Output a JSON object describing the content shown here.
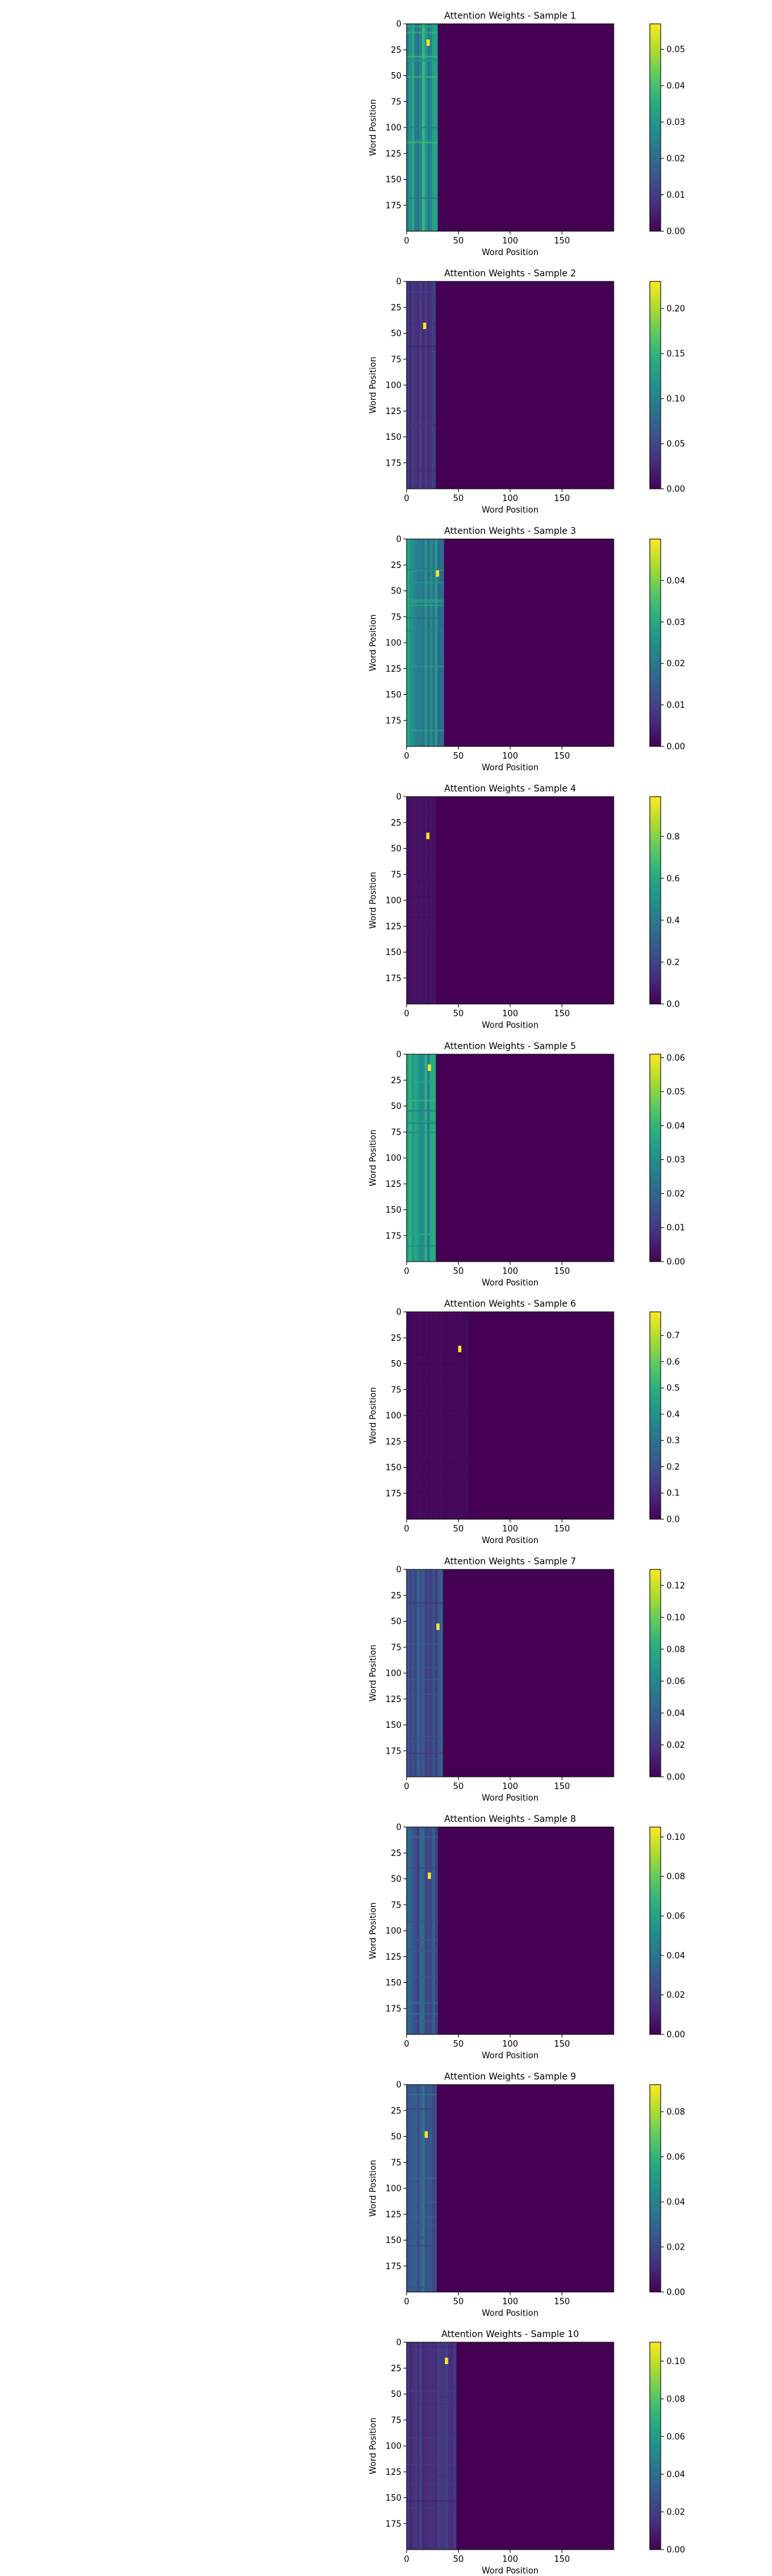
{
  "chart_data": [
    {
      "type": "heatmap",
      "title": "Attention Weights - Sample 1",
      "xlabel": "Word Position",
      "ylabel": "Word Position",
      "xlim": [
        0,
        200
      ],
      "ylim": [
        200,
        0
      ],
      "x_ticks": [
        0,
        50,
        100,
        150
      ],
      "y_ticks": [
        0,
        25,
        50,
        75,
        100,
        125,
        150,
        175
      ],
      "active_columns": 30,
      "base_value": 0.037,
      "max_value": 0.057,
      "colorbar": {
        "min": 0.0,
        "max": 0.057,
        "ticks": [
          0.0,
          0.01,
          0.02,
          0.03,
          0.04,
          0.05
        ],
        "tick_labels": [
          "0.00",
          "0.01",
          "0.02",
          "0.03",
          "0.04",
          "0.05"
        ]
      },
      "colormap": "viridis"
    },
    {
      "type": "heatmap",
      "title": "Attention Weights - Sample 2",
      "xlabel": "Word Position",
      "ylabel": "Word Position",
      "xlim": [
        0,
        200
      ],
      "ylim": [
        200,
        0
      ],
      "x_ticks": [
        0,
        50,
        100,
        150
      ],
      "y_ticks": [
        0,
        25,
        50,
        75,
        100,
        125,
        150,
        175
      ],
      "active_columns": 28,
      "base_value": 0.045,
      "max_value": 0.23,
      "colorbar": {
        "min": 0.0,
        "max": 0.23,
        "ticks": [
          0.0,
          0.05,
          0.1,
          0.15,
          0.2
        ],
        "tick_labels": [
          "0.00",
          "0.05",
          "0.10",
          "0.15",
          "0.20"
        ]
      },
      "colormap": "viridis"
    },
    {
      "type": "heatmap",
      "title": "Attention Weights - Sample 3",
      "xlabel": "Word Position",
      "ylabel": "Word Position",
      "xlim": [
        0,
        200
      ],
      "ylim": [
        200,
        0
      ],
      "x_ticks": [
        0,
        50,
        100,
        150
      ],
      "y_ticks": [
        0,
        25,
        50,
        75,
        100,
        125,
        150,
        175
      ],
      "active_columns": 36,
      "base_value": 0.029,
      "max_value": 0.05,
      "colorbar": {
        "min": 0.0,
        "max": 0.05,
        "ticks": [
          0.0,
          0.01,
          0.02,
          0.03,
          0.04
        ],
        "tick_labels": [
          "0.00",
          "0.01",
          "0.02",
          "0.03",
          "0.04"
        ]
      },
      "colormap": "viridis"
    },
    {
      "type": "heatmap",
      "title": "Attention Weights - Sample 4",
      "xlabel": "Word Position",
      "ylabel": "Word Position",
      "xlim": [
        0,
        200
      ],
      "ylim": [
        200,
        0
      ],
      "x_ticks": [
        0,
        50,
        100,
        150
      ],
      "y_ticks": [
        0,
        25,
        50,
        75,
        100,
        125,
        150,
        175
      ],
      "active_columns": 28,
      "base_value": 0.06,
      "max_value": 0.99,
      "colorbar": {
        "min": 0.0,
        "max": 0.99,
        "ticks": [
          0.0,
          0.2,
          0.4,
          0.6,
          0.8
        ],
        "tick_labels": [
          "0.0",
          "0.2",
          "0.4",
          "0.6",
          "0.8"
        ]
      },
      "colormap": "viridis"
    },
    {
      "type": "heatmap",
      "title": "Attention Weights - Sample 5",
      "xlabel": "Word Position",
      "ylabel": "Word Position",
      "xlim": [
        0,
        200
      ],
      "ylim": [
        200,
        0
      ],
      "x_ticks": [
        0,
        50,
        100,
        150
      ],
      "y_ticks": [
        0,
        25,
        50,
        75,
        100,
        125,
        150,
        175
      ],
      "active_columns": 28,
      "base_value": 0.039,
      "max_value": 0.061,
      "colorbar": {
        "min": 0.0,
        "max": 0.061,
        "ticks": [
          0.0,
          0.01,
          0.02,
          0.03,
          0.04,
          0.05,
          0.06
        ],
        "tick_labels": [
          "0.00",
          "0.01",
          "0.02",
          "0.03",
          "0.04",
          "0.05",
          "0.06"
        ]
      },
      "colormap": "viridis"
    },
    {
      "type": "heatmap",
      "title": "Attention Weights - Sample 6",
      "xlabel": "Word Position",
      "ylabel": "Word Position",
      "xlim": [
        0,
        200
      ],
      "ylim": [
        200,
        0
      ],
      "x_ticks": [
        0,
        50,
        100,
        150
      ],
      "y_ticks": [
        0,
        25,
        50,
        75,
        100,
        125,
        150,
        175
      ],
      "active_columns": 60,
      "base_value": 0.022,
      "max_value": 0.79,
      "colorbar": {
        "min": 0.0,
        "max": 0.79,
        "ticks": [
          0.0,
          0.1,
          0.2,
          0.3,
          0.4,
          0.5,
          0.6,
          0.7
        ],
        "tick_labels": [
          "0.0",
          "0.1",
          "0.2",
          "0.3",
          "0.4",
          "0.5",
          "0.6",
          "0.7"
        ]
      },
      "colormap": "viridis"
    },
    {
      "type": "heatmap",
      "title": "Attention Weights - Sample 7",
      "xlabel": "Word Position",
      "ylabel": "Word Position",
      "xlim": [
        0,
        200
      ],
      "ylim": [
        200,
        0
      ],
      "x_ticks": [
        0,
        50,
        100,
        150
      ],
      "y_ticks": [
        0,
        25,
        50,
        75,
        100,
        125,
        150,
        175
      ],
      "active_columns": 35,
      "base_value": 0.042,
      "max_value": 0.13,
      "colorbar": {
        "min": 0.0,
        "max": 0.13,
        "ticks": [
          0.0,
          0.02,
          0.04,
          0.06,
          0.08,
          0.1,
          0.12
        ],
        "tick_labels": [
          "0.00",
          "0.02",
          "0.04",
          "0.06",
          "0.08",
          "0.10",
          "0.12"
        ]
      },
      "colormap": "viridis"
    },
    {
      "type": "heatmap",
      "title": "Attention Weights - Sample 8",
      "xlabel": "Word Position",
      "ylabel": "Word Position",
      "xlim": [
        0,
        200
      ],
      "ylim": [
        200,
        0
      ],
      "x_ticks": [
        0,
        50,
        100,
        150
      ],
      "y_ticks": [
        0,
        25,
        50,
        75,
        100,
        125,
        150,
        175
      ],
      "active_columns": 30,
      "base_value": 0.036,
      "max_value": 0.105,
      "colorbar": {
        "min": 0.0,
        "max": 0.105,
        "ticks": [
          0.0,
          0.02,
          0.04,
          0.06,
          0.08,
          0.1
        ],
        "tick_labels": [
          "0.00",
          "0.02",
          "0.04",
          "0.06",
          "0.08",
          "0.10"
        ]
      },
      "colormap": "viridis"
    },
    {
      "type": "heatmap",
      "title": "Attention Weights - Sample 9",
      "xlabel": "Word Position",
      "ylabel": "Word Position",
      "xlim": [
        0,
        200
      ],
      "ylim": [
        200,
        0
      ],
      "x_ticks": [
        0,
        50,
        100,
        150
      ],
      "y_ticks": [
        0,
        25,
        50,
        75,
        100,
        125,
        150,
        175
      ],
      "active_columns": 29,
      "base_value": 0.035,
      "max_value": 0.092,
      "colorbar": {
        "min": 0.0,
        "max": 0.092,
        "ticks": [
          0.0,
          0.02,
          0.04,
          0.06,
          0.08
        ],
        "tick_labels": [
          "0.00",
          "0.02",
          "0.04",
          "0.06",
          "0.08"
        ]
      },
      "colormap": "viridis"
    },
    {
      "type": "heatmap",
      "title": "Attention Weights - Sample 10",
      "xlabel": "Word Position",
      "ylabel": "Word Position",
      "xlim": [
        0,
        200
      ],
      "ylim": [
        200,
        0
      ],
      "x_ticks": [
        0,
        50,
        100,
        150
      ],
      "y_ticks": [
        0,
        25,
        50,
        75,
        100,
        125,
        150,
        175
      ],
      "active_columns": 48,
      "base_value": 0.021,
      "max_value": 0.11,
      "colorbar": {
        "min": 0.0,
        "max": 0.11,
        "ticks": [
          0.0,
          0.02,
          0.04,
          0.06,
          0.08,
          0.1
        ],
        "tick_labels": [
          "0.00",
          "0.02",
          "0.04",
          "0.06",
          "0.08",
          "0.10"
        ]
      },
      "colormap": "viridis"
    }
  ]
}
